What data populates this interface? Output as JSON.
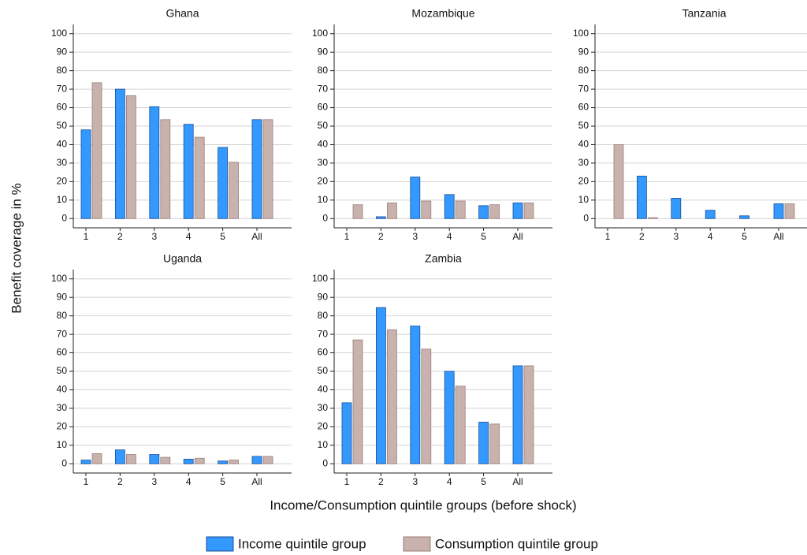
{
  "ylabel": "Benefit coverage in %",
  "xlabel": "Income/Consumption quintile groups (before shock)",
  "chart_data": [
    {
      "type": "bar",
      "title": "Ghana",
      "categories": [
        "1",
        "2",
        "3",
        "4",
        "5",
        "All"
      ],
      "series": [
        {
          "name": "Income quintile group",
          "color": "#3399ff",
          "values": [
            48,
            70,
            60.5,
            51,
            38.5,
            53.5
          ]
        },
        {
          "name": "Consumption quintile group",
          "color": "#c9b2ad",
          "values": [
            73.5,
            66.5,
            53.5,
            44,
            30.5,
            53.5
          ]
        }
      ],
      "ylim": [
        -5,
        105
      ],
      "yticks": [
        0,
        10,
        20,
        30,
        40,
        50,
        60,
        70,
        80,
        90,
        100
      ],
      "grid": true
    },
    {
      "type": "bar",
      "title": "Mozambique",
      "categories": [
        "1",
        "2",
        "3",
        "4",
        "5",
        "All"
      ],
      "series": [
        {
          "name": "Income quintile group",
          "color": "#3399ff",
          "values": [
            0,
            1,
            22.5,
            13,
            7,
            8.5
          ]
        },
        {
          "name": "Consumption quintile group",
          "color": "#c9b2ad",
          "values": [
            7.5,
            8.5,
            9.5,
            9.5,
            7.5,
            8.5
          ]
        }
      ],
      "ylim": [
        -5,
        105
      ],
      "yticks": [
        0,
        10,
        20,
        30,
        40,
        50,
        60,
        70,
        80,
        90,
        100
      ],
      "grid": true
    },
    {
      "type": "bar",
      "title": "Tanzania",
      "categories": [
        "1",
        "2",
        "3",
        "4",
        "5",
        "All"
      ],
      "series": [
        {
          "name": "Income quintile group",
          "color": "#3399ff",
          "values": [
            0,
            23,
            11,
            4.5,
            1.5,
            8
          ]
        },
        {
          "name": "Consumption quintile group",
          "color": "#c9b2ad",
          "values": [
            40,
            0.5,
            0,
            0,
            0,
            8
          ]
        }
      ],
      "ylim": [
        -5,
        105
      ],
      "yticks": [
        0,
        10,
        20,
        30,
        40,
        50,
        60,
        70,
        80,
        90,
        100
      ],
      "grid": true
    },
    {
      "type": "bar",
      "title": "Uganda",
      "categories": [
        "1",
        "2",
        "3",
        "4",
        "5",
        "All"
      ],
      "series": [
        {
          "name": "Income quintile group",
          "color": "#3399ff",
          "values": [
            2,
            7.5,
            5,
            2.5,
            1.5,
            4
          ]
        },
        {
          "name": "Consumption quintile group",
          "color": "#c9b2ad",
          "values": [
            5.5,
            5,
            3.5,
            3,
            2,
            4
          ]
        }
      ],
      "ylim": [
        -5,
        105
      ],
      "yticks": [
        0,
        10,
        20,
        30,
        40,
        50,
        60,
        70,
        80,
        90,
        100
      ],
      "grid": true
    },
    {
      "type": "bar",
      "title": "Zambia",
      "categories": [
        "1",
        "2",
        "3",
        "4",
        "5",
        "All"
      ],
      "series": [
        {
          "name": "Income quintile group",
          "color": "#3399ff",
          "values": [
            33,
            84.5,
            74.5,
            50,
            22.5,
            53
          ]
        },
        {
          "name": "Consumption quintile group",
          "color": "#c9b2ad",
          "values": [
            67,
            72.5,
            62,
            42,
            21.5,
            53
          ]
        }
      ],
      "ylim": [
        -5,
        105
      ],
      "yticks": [
        0,
        10,
        20,
        30,
        40,
        50,
        60,
        70,
        80,
        90,
        100
      ],
      "grid": true
    }
  ]
}
